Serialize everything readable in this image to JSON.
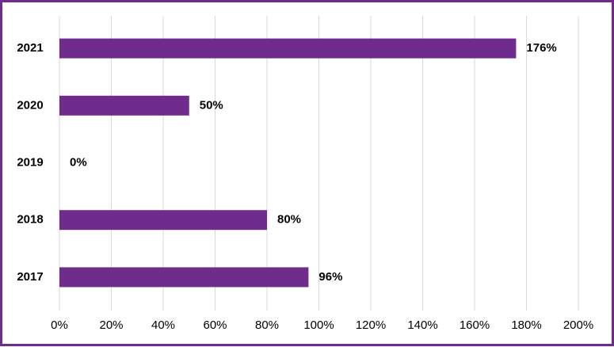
{
  "chart_data": {
    "type": "bar",
    "orientation": "horizontal",
    "categories": [
      "2021",
      "2020",
      "2019",
      "2018",
      "2017"
    ],
    "values": [
      176,
      50,
      0,
      80,
      96
    ],
    "value_labels": [
      "176%",
      "50%",
      "0%",
      "80%",
      "96%"
    ],
    "color": "#702c8c",
    "xlim": [
      0,
      200
    ],
    "xticks": [
      {
        "value": 0,
        "label": "0%"
      },
      {
        "value": 20,
        "label": "20%"
      },
      {
        "value": 40,
        "label": "40%"
      },
      {
        "value": 60,
        "label": "60%"
      },
      {
        "value": 80,
        "label": "80%"
      },
      {
        "value": 100,
        "label": "100%"
      },
      {
        "value": 120,
        "label": "120%"
      },
      {
        "value": 140,
        "label": "140%"
      },
      {
        "value": 160,
        "label": "160%"
      },
      {
        "value": 180,
        "label": "180%"
      },
      {
        "value": 200,
        "label": "200%"
      }
    ],
    "grid": true
  }
}
